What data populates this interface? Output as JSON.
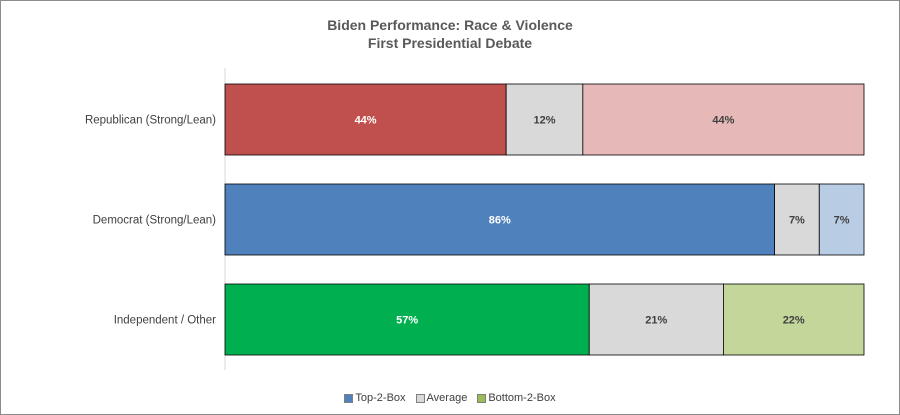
{
  "chart_data": {
    "type": "bar",
    "orientation": "horizontal",
    "stacked": true,
    "percent_stacked": true,
    "title_line1": "Biden Performance:  Race & Violence",
    "title_line2": "First Presidential Debate",
    "xlim": [
      0,
      100
    ],
    "grid": false,
    "legend_position": "bottom",
    "categories": [
      "Republican (Strong/Lean)",
      "Democrat (Strong/Lean)",
      "Independent / Other"
    ],
    "series": [
      {
        "name": "Top-2-Box",
        "values": [
          44,
          86,
          57
        ],
        "labels": [
          "44%",
          "86%",
          "57%"
        ]
      },
      {
        "name": "Average",
        "values": [
          12,
          7,
          21
        ],
        "labels": [
          "12%",
          "7%",
          "21%"
        ]
      },
      {
        "name": "Bottom-2-Box",
        "values": [
          44,
          7,
          22
        ],
        "labels": [
          "44%",
          "7%",
          "22%"
        ]
      }
    ],
    "bar_colors": [
      [
        "#c0504d",
        "#d9d9d9",
        "#e6b9b8"
      ],
      [
        "#4f81bd",
        "#d9d9d9",
        "#b8cce4"
      ],
      [
        "#00b050",
        "#d9d9d9",
        "#c4d79b"
      ]
    ],
    "label_colors": [
      [
        "#ffffff",
        "#404040",
        "#404040"
      ],
      [
        "#ffffff",
        "#404040",
        "#404040"
      ],
      [
        "#ffffff",
        "#404040",
        "#404040"
      ]
    ],
    "legend_colors": [
      "#4f81bd",
      "#d9d9d9",
      "#9bbb59"
    ]
  }
}
